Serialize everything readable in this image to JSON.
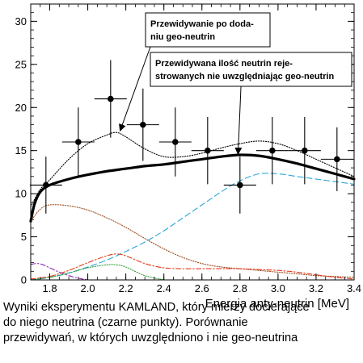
{
  "chart_data": {
    "type": "line",
    "xlabel": "Energia anty-neutrin [MeV]",
    "xlim": [
      1.7,
      3.4
    ],
    "ylim": [
      0,
      32
    ],
    "x_ticks": [
      "1.8",
      "2.0",
      "2.2",
      "2.4",
      "2.6",
      "2.8",
      "3.0",
      "3.2",
      "3.4"
    ],
    "x_tick_values": [
      1.8,
      2.0,
      2.2,
      2.4,
      2.6,
      2.8,
      3.0,
      3.2,
      3.4
    ],
    "y_ticks": [
      "0",
      "5",
      "10",
      "15",
      "20",
      "25",
      "30"
    ],
    "y_tick_values": [
      0,
      5,
      10,
      15,
      20,
      25,
      30
    ],
    "grid": false,
    "legend": "none",
    "data_points": {
      "name": "KamLAND data",
      "color": "#000000",
      "points": [
        {
          "x": 1.78,
          "y": 11,
          "xerr": 0.085,
          "yerr_low": 3.3,
          "yerr_high": 3.3
        },
        {
          "x": 1.95,
          "y": 16,
          "xerr": 0.085,
          "yerr_low": 4.0,
          "yerr_high": 4.0
        },
        {
          "x": 2.12,
          "y": 21,
          "xerr": 0.085,
          "yerr_low": 4.5,
          "yerr_high": 4.5
        },
        {
          "x": 2.29,
          "y": 18,
          "xerr": 0.085,
          "yerr_low": 4.2,
          "yerr_high": 4.2
        },
        {
          "x": 2.46,
          "y": 16,
          "xerr": 0.085,
          "yerr_low": 4.0,
          "yerr_high": 4.0
        },
        {
          "x": 2.63,
          "y": 15,
          "xerr": 0.085,
          "yerr_low": 3.9,
          "yerr_high": 3.9
        },
        {
          "x": 2.8,
          "y": 11,
          "xerr": 0.085,
          "yerr_low": 3.3,
          "yerr_high": 3.3
        },
        {
          "x": 2.97,
          "y": 15,
          "xerr": 0.085,
          "yerr_low": 3.9,
          "yerr_high": 3.9
        },
        {
          "x": 3.14,
          "y": 15,
          "xerr": 0.085,
          "yerr_low": 3.9,
          "yerr_high": 3.9
        },
        {
          "x": 3.31,
          "y": 14,
          "xerr": 0.085,
          "yerr_low": 3.7,
          "yerr_high": 3.7
        }
      ]
    },
    "series": [
      {
        "color": "#000000",
        "style": "solid-thick",
        "x": [
          1.7,
          1.72,
          1.75,
          1.8,
          1.9,
          2.0,
          2.1,
          2.2,
          2.3,
          2.4,
          2.5,
          2.6,
          2.7,
          2.8,
          2.9,
          3.0,
          3.1,
          3.2,
          3.3,
          3.4
        ],
        "y": [
          6.8,
          8.8,
          10.2,
          11.0,
          11.7,
          12.2,
          12.6,
          12.9,
          13.2,
          13.4,
          13.7,
          14.0,
          14.3,
          14.5,
          14.4,
          14.0,
          13.5,
          12.9,
          12.3,
          11.7
        ]
      },
      {
        "color": "#000000",
        "style": "dotted",
        "x": [
          1.7,
          1.75,
          1.8,
          1.9,
          2.0,
          2.1,
          2.15,
          2.2,
          2.3,
          2.4,
          2.5,
          2.6,
          2.7,
          2.8,
          2.9,
          3.0,
          3.1,
          3.2,
          3.3,
          3.4
        ],
        "y": [
          8.5,
          10.5,
          11.6,
          14.0,
          15.8,
          16.8,
          17.1,
          16.6,
          15.2,
          14.3,
          14.3,
          14.7,
          15.3,
          15.8,
          16.1,
          15.8,
          15.0,
          14.0,
          13.0,
          12.0
        ]
      },
      {
        "color": "#2aa5d8",
        "style": "dashed",
        "x": [
          1.7,
          1.8,
          1.9,
          2.0,
          2.1,
          2.2,
          2.3,
          2.4,
          2.5,
          2.6,
          2.7,
          2.8,
          2.9,
          3.0,
          3.1,
          3.2,
          3.3,
          3.4
        ],
        "y": [
          0.0,
          0.3,
          0.8,
          1.5,
          2.3,
          3.3,
          4.4,
          5.7,
          7.2,
          8.7,
          10.2,
          11.5,
          12.3,
          12.3,
          12.0,
          11.7,
          11.4,
          11.1
        ]
      },
      {
        "color": "#9e4c1e",
        "style": "dotted",
        "x": [
          1.7,
          1.75,
          1.8,
          1.9,
          2.0,
          2.1,
          2.2,
          2.3,
          2.4,
          2.5,
          2.6,
          2.7,
          2.8,
          2.9,
          3.0,
          3.1,
          3.2,
          3.3,
          3.4
        ],
        "y": [
          6.8,
          8.2,
          8.7,
          8.6,
          8.1,
          7.2,
          6.1,
          4.8,
          3.6,
          2.6,
          1.9,
          1.5,
          1.3,
          1.1,
          0.9,
          0.7,
          0.5,
          0.4,
          0.3
        ]
      },
      {
        "color": "#e53a1e",
        "style": "dashdot",
        "x": [
          1.7,
          1.8,
          1.9,
          2.0,
          2.1,
          2.15,
          2.2,
          2.3,
          2.4,
          2.5,
          2.6,
          2.7,
          2.8,
          2.9,
          3.0,
          3.1,
          3.2,
          3.3,
          3.4
        ],
        "y": [
          0.1,
          0.4,
          1.1,
          2.0,
          2.8,
          3.0,
          2.8,
          1.9,
          1.4,
          1.3,
          1.3,
          1.3,
          1.3,
          1.2,
          1.1,
          0.9,
          0.6,
          0.3,
          0.1
        ]
      },
      {
        "color": "#2e9e3a",
        "style": "dotted",
        "x": [
          1.7,
          1.8,
          1.9,
          2.0,
          2.1,
          2.15,
          2.2,
          2.3,
          2.4
        ],
        "y": [
          0.0,
          0.3,
          0.8,
          1.4,
          1.75,
          1.75,
          1.5,
          0.5,
          0.0
        ]
      },
      {
        "color": "#8b2bb5",
        "style": "dashdot",
        "x": [
          1.7,
          1.73,
          1.76,
          1.8,
          1.85,
          1.9,
          1.95,
          2.0
        ],
        "y": [
          1.8,
          1.9,
          1.8,
          1.4,
          0.9,
          0.5,
          0.2,
          0.0
        ]
      }
    ],
    "annotations": [
      {
        "lines": [
          "Przewidywanie po doda-",
          "niu geo-neutrin"
        ],
        "arrow_to": {
          "x": 2.17,
          "y": 17.3
        }
      },
      {
        "lines": [
          "Przewidywana ilość neutrin reje-",
          "strowanych nie uwzględniając geo-neutrin"
        ],
        "arrow_to": {
          "x": 2.79,
          "y": 14.6
        }
      }
    ]
  },
  "caption": [
    "Wyniki eksperymentu KAMLAND, który mierzy docierające",
    "do niego neutrina (czarne punkty). Porównanie",
    "przewidywań, w których uwzględniono i nie geo-neutrina"
  ]
}
